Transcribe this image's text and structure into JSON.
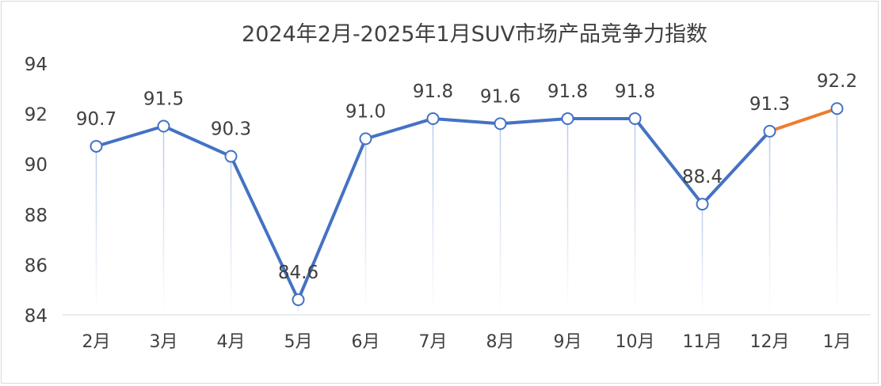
{
  "chart_data": {
    "type": "line",
    "title": "2024年2月-2025年1月SUV市场产品竞争力指数",
    "categories": [
      "2月",
      "3月",
      "4月",
      "5月",
      "6月",
      "7月",
      "8月",
      "9月",
      "10月",
      "11月",
      "12月",
      "1月"
    ],
    "values": [
      90.7,
      91.5,
      90.3,
      84.6,
      91.0,
      91.8,
      91.6,
      91.8,
      91.8,
      88.4,
      91.3,
      92.2
    ],
    "value_labels": [
      "90.7",
      "91.5",
      "90.3",
      "84.6",
      "91.0",
      "91.8",
      "91.6",
      "91.8",
      "91.8",
      "88.4",
      "91.3",
      "92.2"
    ],
    "ylim": [
      84,
      94
    ],
    "yticks": [
      84,
      86,
      88,
      90,
      92,
      94
    ],
    "ytick_labels": [
      "84",
      "86",
      "88",
      "90",
      "92",
      "94"
    ],
    "xlabel": "",
    "ylabel": "",
    "grid": false,
    "legend": "none",
    "drop_lines": true,
    "colors": {
      "line": "#4472c4",
      "highlight_segment": "#ed7d31",
      "marker_fill": "#ffffff",
      "drop_line": "#b4c7e7",
      "text": "#404040"
    }
  }
}
